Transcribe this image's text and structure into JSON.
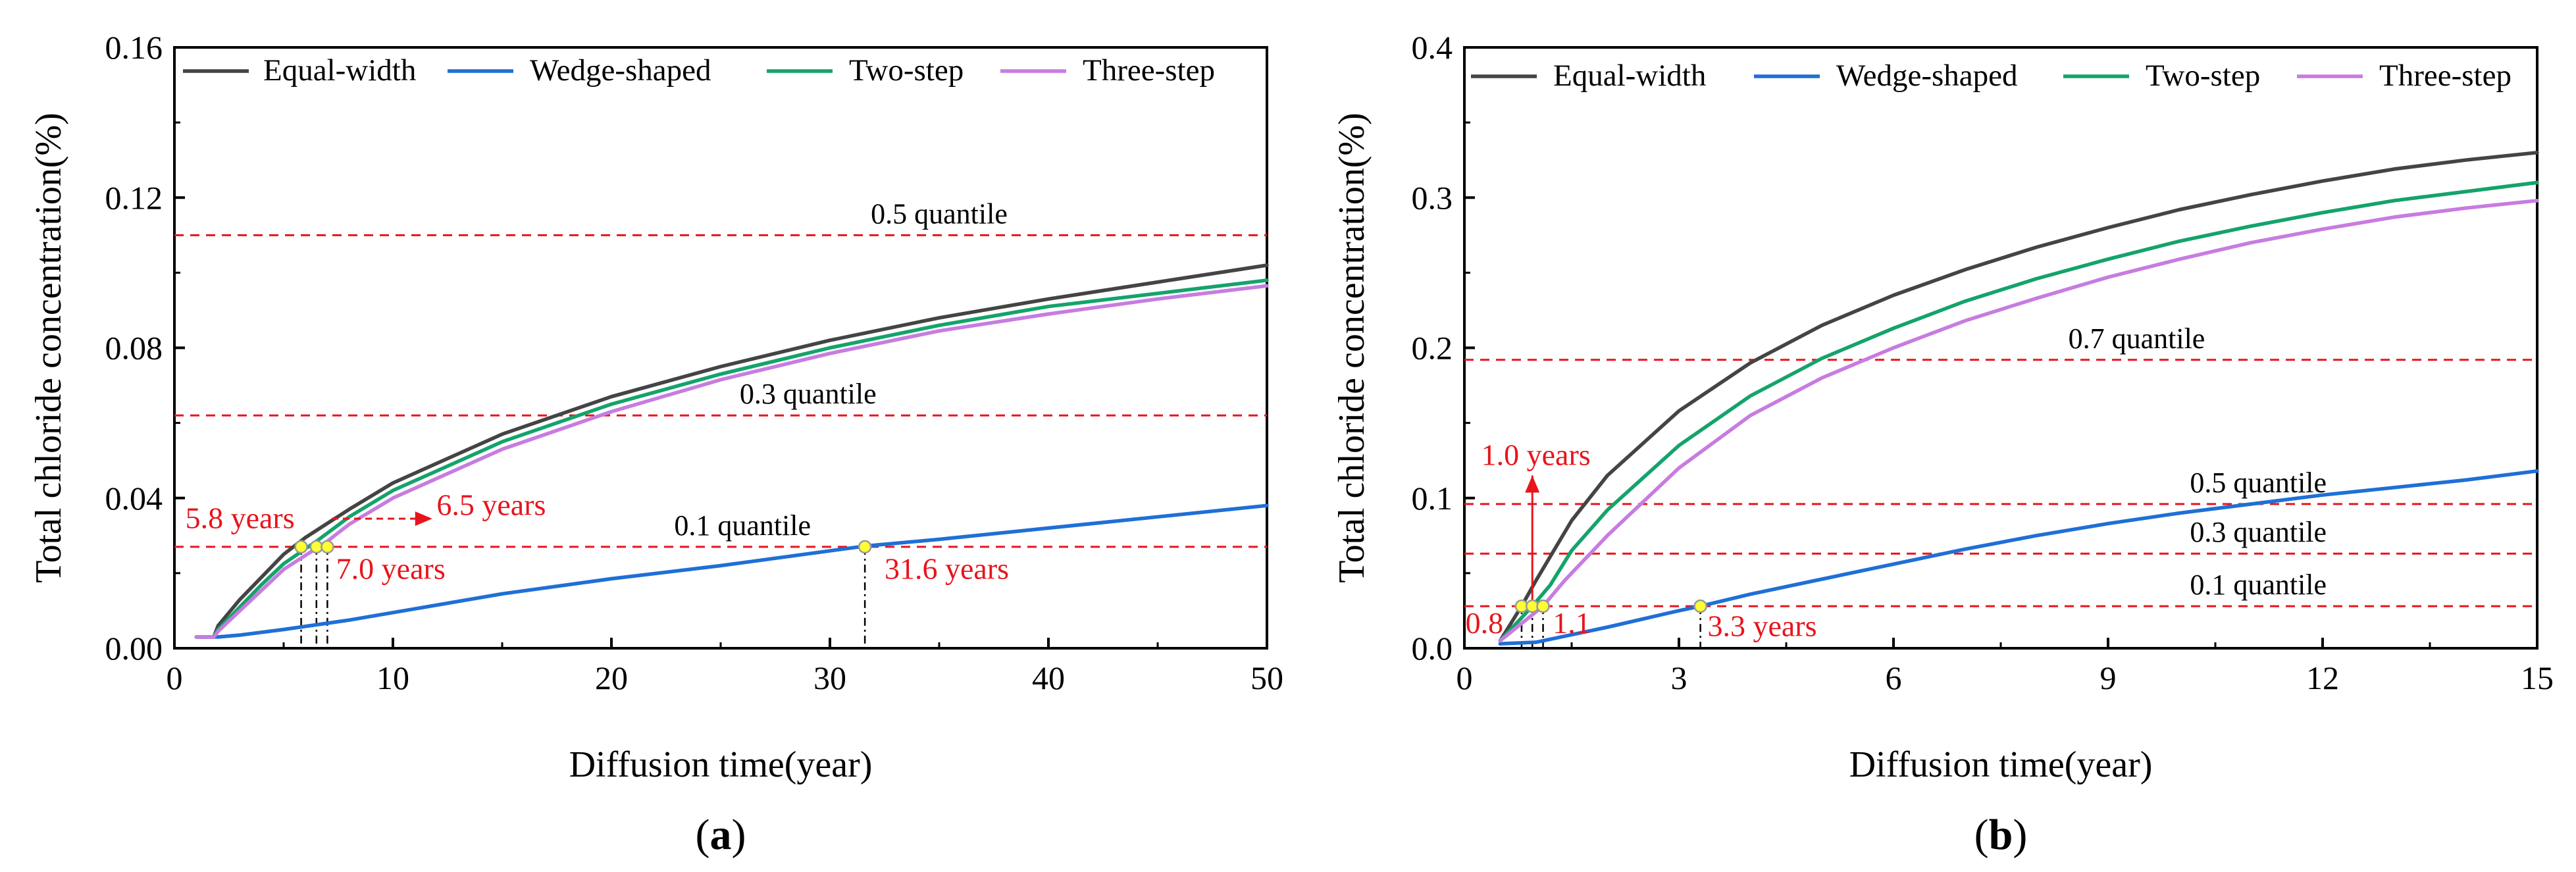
{
  "colors": {
    "equal_width": "#444444",
    "wedge_shaped": "#1f6fd6",
    "two_step": "#14a36b",
    "three_step": "#c77ce0",
    "quantile_line": "#e8141c",
    "annotation": "#e8141c",
    "marker_fill": "#ffff33",
    "marker_stroke": "#999999"
  },
  "chart_data": [
    {
      "type": "line",
      "panel_label_prefix": "(",
      "panel_label_letter": "a",
      "panel_label_suffix": ")",
      "xlabel": "Diffusion time(year)",
      "ylabel": "Total chloride concentration(%)",
      "xlim": [
        0,
        50
      ],
      "ylim": [
        0,
        0.16
      ],
      "x_ticks": [
        0,
        10,
        20,
        30,
        40,
        50
      ],
      "x_tick_labels": [
        "0",
        "10",
        "20",
        "30",
        "40",
        "50"
      ],
      "y_ticks": [
        0,
        0.04,
        0.08,
        0.12,
        0.16
      ],
      "y_tick_labels": [
        "0.00",
        "0.04",
        "0.08",
        "0.12",
        "0.16"
      ],
      "legend_position": "top",
      "series": [
        {
          "name": "Equal-width",
          "color_key": "equal_width",
          "x": [
            1,
            1.8,
            2,
            3,
            4,
            5,
            6,
            8,
            10,
            15,
            20,
            25,
            30,
            35,
            40,
            45,
            50
          ],
          "y": [
            0.003,
            0.003,
            0.006,
            0.013,
            0.019,
            0.025,
            0.0295,
            0.037,
            0.044,
            0.057,
            0.067,
            0.075,
            0.082,
            0.088,
            0.093,
            0.0975,
            0.102
          ]
        },
        {
          "name": "Wedge-shaped",
          "color_key": "wedge_shaped",
          "x": [
            1,
            2,
            3,
            5,
            8,
            10,
            15,
            20,
            25,
            31.6,
            35,
            40,
            45,
            50
          ],
          "y": [
            0.003,
            0.003,
            0.0035,
            0.005,
            0.0075,
            0.0095,
            0.0145,
            0.0185,
            0.022,
            0.0272,
            0.029,
            0.032,
            0.035,
            0.038
          ]
        },
        {
          "name": "Two-step",
          "color_key": "two_step",
          "x": [
            1,
            1.8,
            2,
            3,
            4,
            5,
            6.5,
            8,
            10,
            15,
            20,
            25,
            30,
            35,
            40,
            45,
            50
          ],
          "y": [
            0.003,
            0.003,
            0.005,
            0.011,
            0.017,
            0.0225,
            0.0285,
            0.035,
            0.042,
            0.055,
            0.065,
            0.073,
            0.08,
            0.086,
            0.091,
            0.0945,
            0.098
          ]
        },
        {
          "name": "Three-step",
          "color_key": "three_step",
          "x": [
            1,
            1.8,
            2,
            3,
            4,
            5,
            7,
            8,
            10,
            15,
            20,
            25,
            30,
            35,
            40,
            45,
            50
          ],
          "y": [
            0.003,
            0.003,
            0.0045,
            0.01,
            0.0155,
            0.021,
            0.0285,
            0.033,
            0.04,
            0.053,
            0.063,
            0.0715,
            0.0785,
            0.0845,
            0.089,
            0.093,
            0.0965
          ]
        }
      ],
      "quantiles": [
        {
          "label": "0.5 quantile",
          "y": 0.11,
          "label_x": 35
        },
        {
          "label": "0.3 quantile",
          "y": 0.062,
          "label_x": 29
        },
        {
          "label": "0.1 quantile",
          "y": 0.027,
          "label_x": 26
        }
      ],
      "markers": [
        {
          "x": 5.8,
          "y": 0.027,
          "drop_line": true
        },
        {
          "x": 6.5,
          "y": 0.027,
          "drop_line": true
        },
        {
          "x": 7.0,
          "y": 0.027,
          "drop_line": true
        },
        {
          "x": 31.6,
          "y": 0.027,
          "drop_line": true
        }
      ],
      "annotations": [
        {
          "text": "5.8 years",
          "x": 3,
          "y": 0.032,
          "anchor": "middle"
        },
        {
          "text": "6.5 years",
          "x": 12,
          "y": 0.0355,
          "anchor": "start"
        },
        {
          "text": "7.0 years",
          "x": 7.4,
          "y": 0.0185,
          "anchor": "start"
        },
        {
          "text": "31.6 years",
          "x": 32.5,
          "y": 0.0185,
          "anchor": "start"
        }
      ],
      "arrows": [
        {
          "x1": 7.2,
          "y1": 0.0345,
          "x2": 11.8,
          "y2": 0.0345,
          "dashed": true
        }
      ]
    },
    {
      "type": "line",
      "panel_label_prefix": "(",
      "panel_label_letter": "b",
      "panel_label_suffix": ")",
      "xlabel": "Diffusion time(year)",
      "ylabel": "Total chloride concentration(%)",
      "xlim": [
        0,
        15
      ],
      "ylim": [
        0,
        0.4
      ],
      "x_ticks": [
        0,
        3,
        6,
        9,
        12,
        15
      ],
      "x_tick_labels": [
        "0",
        "3",
        "6",
        "9",
        "12",
        "15"
      ],
      "y_ticks": [
        0,
        0.1,
        0.2,
        0.3,
        0.4
      ],
      "y_tick_labels": [
        "0.0",
        "0.1",
        "0.2",
        "0.3",
        "0.4"
      ],
      "legend_position": "top",
      "series": [
        {
          "name": "Equal-width",
          "color_key": "equal_width",
          "x": [
            0.5,
            0.8,
            1,
            1.5,
            2,
            3,
            4,
            5,
            6,
            7,
            8,
            9,
            10,
            11,
            12,
            13,
            14,
            15
          ],
          "y": [
            0.005,
            0.028,
            0.045,
            0.085,
            0.115,
            0.158,
            0.19,
            0.215,
            0.235,
            0.252,
            0.267,
            0.28,
            0.292,
            0.302,
            0.311,
            0.319,
            0.325,
            0.33
          ]
        },
        {
          "name": "Wedge-shaped",
          "color_key": "wedge_shaped",
          "x": [
            0.5,
            1,
            2,
            3,
            3.3,
            4,
            5,
            6,
            7,
            8,
            9,
            10,
            11,
            12,
            13,
            14,
            15
          ],
          "y": [
            0.003,
            0.004,
            0.014,
            0.025,
            0.028,
            0.036,
            0.046,
            0.056,
            0.066,
            0.075,
            0.083,
            0.09,
            0.096,
            0.102,
            0.107,
            0.112,
            0.118
          ]
        },
        {
          "name": "Two-step",
          "color_key": "two_step",
          "x": [
            0.5,
            0.95,
            1.2,
            1.5,
            2,
            3,
            4,
            5,
            6,
            7,
            8,
            9,
            10,
            11,
            12,
            13,
            14,
            15
          ],
          "y": [
            0.005,
            0.028,
            0.042,
            0.065,
            0.092,
            0.135,
            0.168,
            0.193,
            0.213,
            0.231,
            0.246,
            0.259,
            0.271,
            0.281,
            0.29,
            0.298,
            0.304,
            0.31
          ]
        },
        {
          "name": "Three-step",
          "color_key": "three_step",
          "x": [
            0.5,
            1.1,
            1.4,
            2,
            3,
            4,
            5,
            6,
            7,
            8,
            9,
            10,
            11,
            12,
            13,
            14,
            15
          ],
          "y": [
            0.005,
            0.028,
            0.045,
            0.075,
            0.12,
            0.155,
            0.18,
            0.2,
            0.218,
            0.233,
            0.247,
            0.259,
            0.27,
            0.279,
            0.287,
            0.293,
            0.298
          ]
        }
      ],
      "quantiles": [
        {
          "label": "0.7 quantile",
          "y": 0.192,
          "label_x": 9.4
        },
        {
          "label": "0.5 quantile",
          "y": 0.096,
          "label_x": 11.1
        },
        {
          "label": "0.3 quantile",
          "y": 0.063,
          "label_x": 11.1
        },
        {
          "label": "0.1 quantile",
          "y": 0.028,
          "label_x": 11.1
        }
      ],
      "markers": [
        {
          "x": 0.8,
          "y": 0.028,
          "drop_line": true
        },
        {
          "x": 0.95,
          "y": 0.028,
          "drop_line": true
        },
        {
          "x": 1.1,
          "y": 0.028,
          "drop_line": true
        },
        {
          "x": 3.3,
          "y": 0.028,
          "drop_line": true
        }
      ],
      "annotations": [
        {
          "text": "1.0 years",
          "x": 1.0,
          "y": 0.122,
          "anchor": "middle"
        },
        {
          "text": "0.8",
          "x": 0.28,
          "y": 0.01,
          "anchor": "middle"
        },
        {
          "text": "1.1",
          "x": 1.5,
          "y": 0.01,
          "anchor": "middle"
        },
        {
          "text": "3.3 years",
          "x": 3.4,
          "y": 0.008,
          "anchor": "start"
        }
      ],
      "arrows": [
        {
          "x1": 0.95,
          "y1": 0.031,
          "x2": 0.95,
          "y2": 0.115,
          "dashed": false
        }
      ]
    }
  ]
}
